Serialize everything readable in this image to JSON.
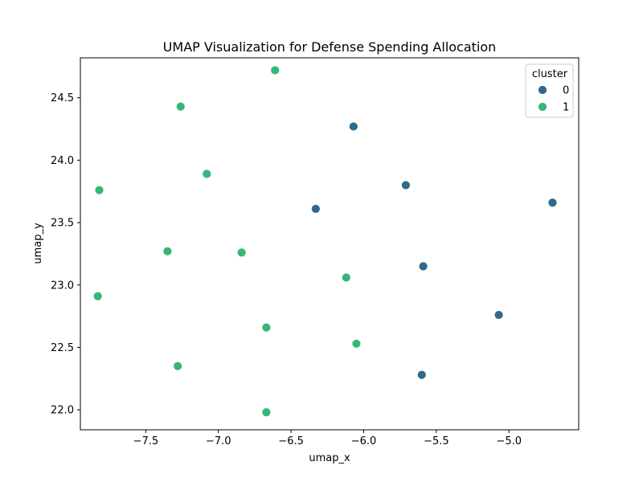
{
  "chart_data": {
    "type": "scatter",
    "title": "UMAP Visualization for Defense Spending Allocation",
    "xlabel": "umap_x",
    "ylabel": "umap_y",
    "xlim": [
      -7.95,
      -4.52
    ],
    "ylim": [
      21.84,
      24.82
    ],
    "xticks": [
      -7.5,
      -7.0,
      -6.5,
      -6.0,
      -5.5,
      -5.0
    ],
    "xtick_labels": [
      "−7.5",
      "−7.0",
      "−6.5",
      "−6.0",
      "−5.5",
      "−5.0"
    ],
    "yticks": [
      22.0,
      22.5,
      23.0,
      23.5,
      24.0,
      24.5
    ],
    "ytick_labels": [
      "22.0",
      "22.5",
      "23.0",
      "23.5",
      "24.0",
      "24.5"
    ],
    "grid": false,
    "legend": {
      "title": "cluster",
      "placement": "top-right"
    },
    "series": [
      {
        "name": "0",
        "color": "#31688e",
        "points": [
          {
            "x": -6.07,
            "y": 24.27
          },
          {
            "x": -5.71,
            "y": 23.8
          },
          {
            "x": -4.7,
            "y": 23.66
          },
          {
            "x": -6.33,
            "y": 23.61
          },
          {
            "x": -5.59,
            "y": 23.15
          },
          {
            "x": -5.07,
            "y": 22.76
          },
          {
            "x": -5.6,
            "y": 22.28
          }
        ]
      },
      {
        "name": "1",
        "color": "#35b779",
        "points": [
          {
            "x": -6.61,
            "y": 24.72
          },
          {
            "x": -7.26,
            "y": 24.43
          },
          {
            "x": -7.08,
            "y": 23.89
          },
          {
            "x": -7.82,
            "y": 23.76
          },
          {
            "x": -7.35,
            "y": 23.27
          },
          {
            "x": -6.84,
            "y": 23.26
          },
          {
            "x": -6.12,
            "y": 23.06
          },
          {
            "x": -7.83,
            "y": 22.91
          },
          {
            "x": -6.67,
            "y": 22.66
          },
          {
            "x": -6.05,
            "y": 22.53
          },
          {
            "x": -7.28,
            "y": 22.35
          },
          {
            "x": -6.67,
            "y": 21.98
          }
        ]
      }
    ]
  }
}
